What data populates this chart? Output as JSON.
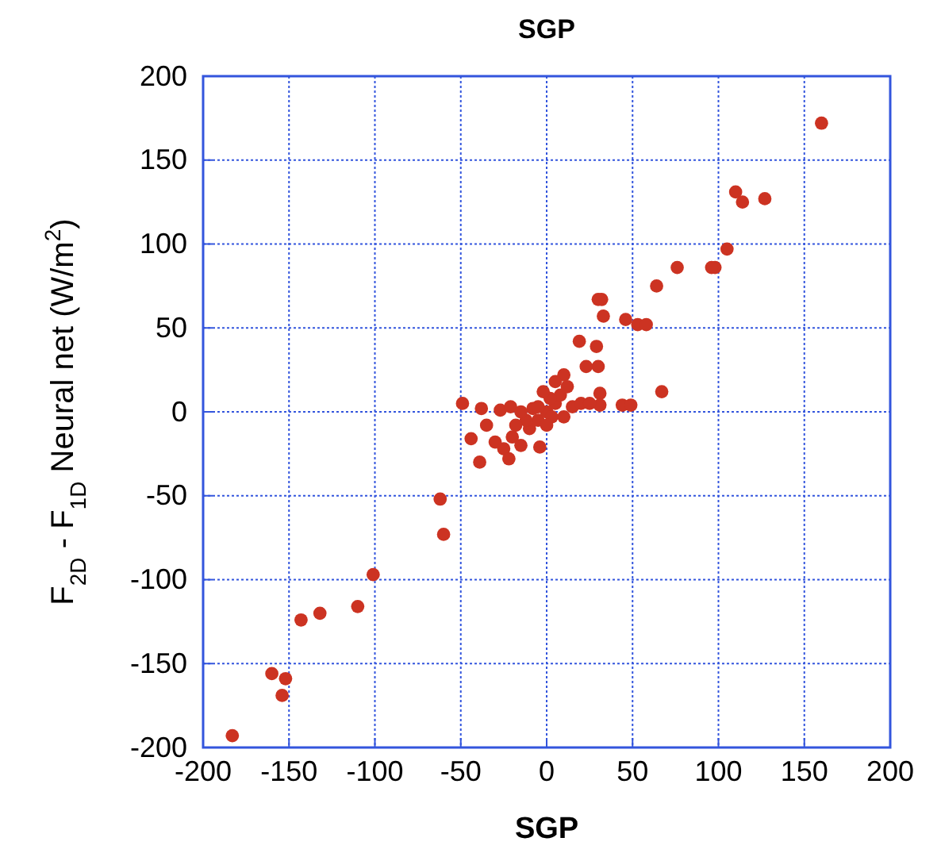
{
  "chart_data": {
    "type": "scatter",
    "title": "SGP",
    "xlabel": "SGP",
    "ylabel": "F$_{2D}$ - F$_{1D}$ Neural net (W/m$^{2}$)",
    "xlim": [
      -200,
      200
    ],
    "ylim": [
      -200,
      200
    ],
    "xticks": [
      -200,
      -150,
      -100,
      -50,
      0,
      50,
      100,
      150,
      200
    ],
    "yticks": [
      -200,
      -150,
      -100,
      -50,
      0,
      50,
      100,
      150,
      200
    ],
    "grid": true,
    "marker": "circle",
    "series": [
      {
        "color": "#cc3322",
        "x": [
          160,
          110,
          114,
          127,
          105,
          98,
          96,
          76,
          64,
          32,
          30,
          33,
          46,
          53,
          58,
          19,
          29,
          30,
          23,
          10,
          31,
          67,
          31,
          44,
          49,
          -49,
          -38,
          -35,
          -44,
          -39,
          -4,
          -27,
          -21,
          -183,
          -160,
          -152,
          -154,
          -143,
          -132,
          -110,
          -101,
          -62,
          -60,
          -20,
          -15,
          -25,
          -10,
          -5,
          0,
          5,
          3,
          8,
          12,
          -8,
          2,
          15,
          20,
          -12,
          -18,
          10,
          25,
          -2,
          5,
          0,
          -30,
          -22,
          -15,
          -5
        ],
        "values": [
          172,
          131,
          125,
          127,
          97,
          86,
          86,
          86,
          75,
          67,
          67,
          57,
          55,
          52,
          52,
          42,
          39,
          27,
          27,
          22,
          11,
          12,
          4,
          4,
          4,
          5,
          2,
          -8,
          -16,
          -30,
          -21,
          1,
          3,
          -193,
          -156,
          -159,
          -169,
          -124,
          -120,
          -116,
          -97,
          -52,
          -73,
          -15,
          -20,
          -22,
          -10,
          -5,
          0,
          5,
          -3,
          10,
          15,
          2,
          8,
          3,
          5,
          -5,
          -8,
          -3,
          5,
          12,
          18,
          -8,
          -18,
          -28,
          0,
          3
        ]
      }
    ]
  }
}
